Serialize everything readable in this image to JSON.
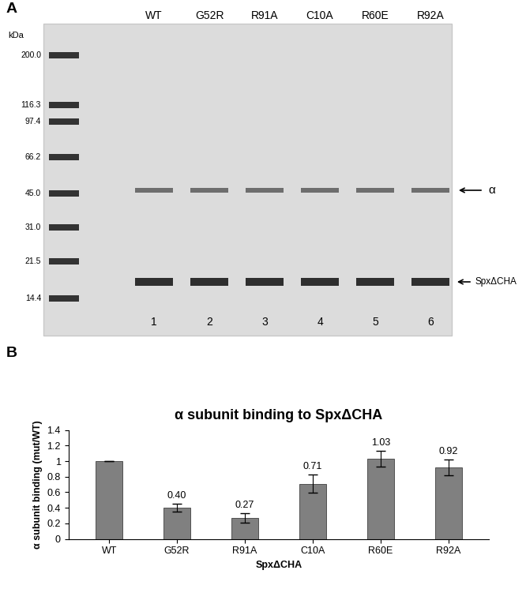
{
  "panel_a": {
    "label": "A",
    "unit": "kDa",
    "markers": [
      200.0,
      116.3,
      97.4,
      66.2,
      45.0,
      31.0,
      21.5,
      14.4
    ],
    "lanes": [
      "WT",
      "G52R",
      "R91A",
      "C10A",
      "R60E",
      "R92A"
    ],
    "lane_numbers": [
      1,
      2,
      3,
      4,
      5,
      6
    ],
    "band_labels": [
      "α",
      "SpxΔCHA"
    ]
  },
  "chart_data": {
    "type": "bar",
    "panel_label": "B",
    "title": "α subunit binding to SpxΔCHA",
    "xlabel": "SpxΔCHA",
    "ylabel": "α subunit binding (mut/WT)",
    "categories": [
      "WT",
      "G52R",
      "R91A",
      "C10A",
      "R60E",
      "R92A"
    ],
    "values": [
      1,
      0.4,
      0.27,
      0.71,
      1.03,
      0.92
    ],
    "value_labels": [
      null,
      "0.40",
      "0.27",
      "0.71",
      "1.03",
      "0.92"
    ],
    "errors": [
      0,
      0.05,
      0.06,
      0.12,
      0.1,
      0.1
    ],
    "color": "#808080",
    "ylim": [
      0,
      1.4
    ],
    "yticks": [
      0,
      0.2,
      0.4,
      0.6,
      0.8,
      1,
      1.2,
      1.4
    ],
    "grid": false,
    "data_labels": true
  }
}
